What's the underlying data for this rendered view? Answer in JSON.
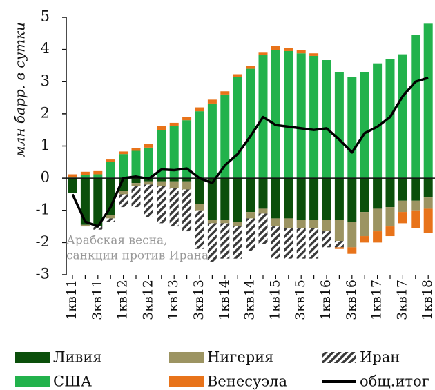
{
  "chart_data": {
    "type": "bar",
    "y_label": "млн барр. в сутки",
    "annotation": [
      "Арабская весна,",
      "санкции против Ирана"
    ],
    "categories": [
      "1кв11",
      null,
      "3кв11",
      null,
      "1кв12",
      null,
      "3кв12",
      null,
      "1кв13",
      null,
      "3кв13",
      null,
      "1кв14",
      null,
      "3кв14",
      null,
      "1кв15",
      null,
      "3кв15",
      null,
      "1кв16",
      null,
      "3кв16",
      null,
      "1кв17",
      null,
      "3кв17",
      null,
      "1кв18"
    ],
    "ylim": [
      -3,
      5
    ],
    "yticks": [
      -3,
      -2,
      -1,
      0,
      1,
      2,
      3,
      4,
      5
    ],
    "series": [
      {
        "name": "Ливия",
        "color": "#0b4f0b",
        "values": [
          -0.45,
          -1.45,
          -1.5,
          -1.15,
          -0.4,
          -0.15,
          -0.1,
          -0.1,
          -0.1,
          -0.1,
          -0.8,
          -1.3,
          -1.3,
          -1.35,
          -1.05,
          -0.95,
          -1.25,
          -1.25,
          -1.3,
          -1.3,
          -1.3,
          -1.3,
          -1.35,
          -1.05,
          -0.95,
          -0.9,
          -0.7,
          -0.7,
          -0.6
        ]
      },
      {
        "name": "Нигерия",
        "color": "#9c9462",
        "values": [
          0,
          -0.05,
          0,
          -0.1,
          -0.1,
          -0.1,
          -0.1,
          -0.15,
          -0.2,
          -0.25,
          -0.2,
          -0.1,
          -0.1,
          -0.15,
          -0.2,
          -0.15,
          -0.25,
          -0.3,
          -0.25,
          -0.25,
          -0.35,
          -0.65,
          -0.8,
          -0.75,
          -0.7,
          -0.6,
          -0.35,
          -0.3,
          -0.35
        ]
      },
      {
        "name": "Иран",
        "color": "#3a3a3a",
        "pattern": "hatch",
        "values": [
          0,
          0,
          -0.1,
          -0.1,
          -0.4,
          -0.65,
          -1.0,
          -1.15,
          -1.2,
          -1.3,
          -1.2,
          -1.2,
          -1.1,
          -1.0,
          -1.0,
          -0.95,
          -1.0,
          -0.95,
          -0.95,
          -0.95,
          -0.5,
          -0.2,
          0,
          0,
          0,
          0,
          0,
          0,
          0
        ]
      },
      {
        "name": "США",
        "color": "#22b24c",
        "values": [
          0.02,
          0.1,
          0.12,
          0.5,
          0.75,
          0.85,
          0.95,
          1.5,
          1.62,
          1.8,
          2.08,
          2.32,
          2.6,
          3.15,
          3.4,
          3.82,
          3.98,
          3.95,
          3.88,
          3.8,
          3.67,
          3.3,
          3.15,
          3.3,
          3.57,
          3.7,
          3.85,
          4.45,
          4.8
        ]
      },
      {
        "name": "Венесуэла",
        "color": "#e8731a",
        "values": [
          0.1,
          0.1,
          0.1,
          0.08,
          0.08,
          0.08,
          0.12,
          0.12,
          0.1,
          0.1,
          0.12,
          0.12,
          0.1,
          0.08,
          0.08,
          0.08,
          0.12,
          0.1,
          0.1,
          0.08,
          0,
          -0.05,
          -0.2,
          -0.2,
          -0.35,
          -0.3,
          -0.35,
          -0.55,
          -0.75
        ]
      },
      {
        "name": "общ.итог",
        "color": "#000000",
        "type": "line",
        "values": [
          -0.5,
          -1.35,
          -1.5,
          -0.9,
          0,
          0.05,
          -0.02,
          0.27,
          0.25,
          0.3,
          0.0,
          -0.15,
          0.4,
          0.75,
          1.3,
          1.9,
          1.65,
          1.6,
          1.55,
          1.5,
          1.55,
          1.2,
          0.8,
          1.4,
          1.6,
          1.9,
          2.55,
          3.0,
          3.12
        ]
      }
    ]
  }
}
